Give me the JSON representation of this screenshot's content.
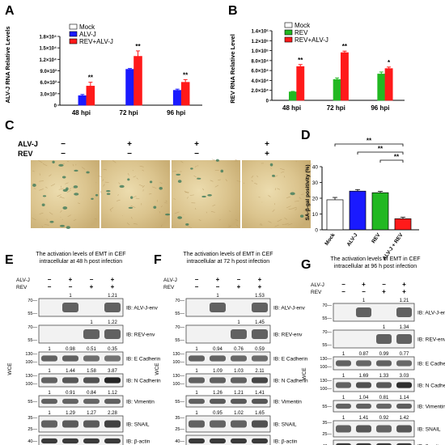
{
  "panels": {
    "A": {
      "letter": "A",
      "ylabel": "ALV-J RNA Relative Levels",
      "yticks": [
        "0",
        "3.0×10³",
        "6.0×10³",
        "9.0×10³",
        "1.2×10⁴",
        "1.5×10⁴",
        "1.8×10⁴"
      ],
      "categories": [
        "48 hpi",
        "72 hpi",
        "96 hpi"
      ],
      "legend": [
        "Mock",
        "ALV-J",
        "REV+ALV-J"
      ],
      "sig": [
        "**",
        "**",
        "**"
      ]
    },
    "B": {
      "letter": "B",
      "ylabel": "REV RNA Relative Level",
      "yticks": [
        "0",
        "2.0×10⁴",
        "4.0×10⁴",
        "6.0×10⁴",
        "8.0×10⁴",
        "1.0×10⁵",
        "1.2×10⁵",
        "1.4×10⁵"
      ],
      "categories": [
        "48 hpi",
        "72 hpi",
        "96 hpi"
      ],
      "legend": [
        "Mock",
        "REV",
        "REV+ALV-J"
      ],
      "sig": [
        "**",
        "**",
        "*"
      ]
    },
    "C": {
      "letter": "C",
      "row_labels": [
        "ALV-J",
        "REV"
      ],
      "signs": [
        [
          "−",
          "+",
          "+",
          "+"
        ],
        [
          "−",
          "−",
          "−",
          "+"
        ]
      ]
    },
    "D": {
      "letter": "D",
      "ylabel": "SA-β-gal positivity (%)",
      "yticks": [
        "0",
        "10",
        "20",
        "30",
        "40"
      ],
      "categories": [
        "Mock",
        "ALV-J",
        "REV",
        "ALV-J + REV"
      ],
      "sig": [
        "**",
        "**",
        "**"
      ]
    },
    "blots": [
      {
        "letter": "E",
        "title1": "The activation levels of EMT in CEF",
        "title2": "intracellular at 48 h post infection",
        "rows": [
          {
            "label": "IB: ALV-J-env",
            "mw": [
              "70—",
              "55—"
            ],
            "values": [
              "1",
              "1.21"
            ]
          },
          {
            "label": "IB: REV-env",
            "mw": [
              "70—",
              "55—"
            ],
            "values": [
              "1",
              "1.22"
            ]
          },
          {
            "label": "IB: E Cadherin",
            "mw": [
              "130—",
              "100—"
            ],
            "values": [
              "1",
              "0.98",
              "0.51",
              "0.35"
            ]
          },
          {
            "label": "IB: N Cadherin",
            "mw": [
              "130—",
              "100—"
            ],
            "values": [
              "1",
              "1.44",
              "1.58",
              "3.87"
            ]
          },
          {
            "label": "IB: Vimentin",
            "mw": [
              "55—"
            ],
            "values": [
              "1",
              "0.91",
              "0.84",
              "1.12"
            ]
          },
          {
            "label": "IB: SNAIL",
            "mw": [
              "35—",
              "25—"
            ],
            "values": [
              "1",
              "1.29",
              "1.27",
              "2.28"
            ]
          },
          {
            "label": "IB: β-actin",
            "mw": [
              "40—"
            ],
            "values": []
          }
        ]
      },
      {
        "letter": "F",
        "title1": "The activation levels of EMT in CEF",
        "title2": "intracellular at 72 h post infection",
        "rows": [
          {
            "label": "IB: ALV-J-env",
            "mw": [
              "70—",
              "55—"
            ],
            "values": [
              "1",
              "1.53"
            ]
          },
          {
            "label": "IB: REV-env",
            "mw": [
              "70—",
              "55—"
            ],
            "values": [
              "1",
              "1.45"
            ]
          },
          {
            "label": "IB: E Cadherin",
            "mw": [
              "130—",
              "100—"
            ],
            "values": [
              "1",
              "0.94",
              "0.76",
              "0.59"
            ]
          },
          {
            "label": "IB: N Cadherin",
            "mw": [
              "130—",
              "100—"
            ],
            "values": [
              "1",
              "1.09",
              "1.03",
              "2.11"
            ]
          },
          {
            "label": "IB: Vimentin",
            "mw": [
              "55—"
            ],
            "values": [
              "1",
              "1.26",
              "1.21",
              "1.41"
            ]
          },
          {
            "label": "IB: SNAIL",
            "mw": [
              "35—",
              "25—"
            ],
            "values": [
              "1",
              "0.95",
              "1.02",
              "1.65"
            ]
          },
          {
            "label": "IB: β-actin",
            "mw": [
              "40—"
            ],
            "values": []
          }
        ]
      },
      {
        "letter": "G",
        "title1": "The activation levels of EMT in CEF",
        "title2": "intracellular at 96 h post  infection",
        "rows": [
          {
            "label": "IB: ALV-J-env",
            "mw": [
              "70—",
              "55—"
            ],
            "values": [
              "1",
              "1.21"
            ]
          },
          {
            "label": "IB: REV-env",
            "mw": [
              "70—",
              "55—"
            ],
            "values": [
              "1",
              "1.34"
            ]
          },
          {
            "label": "IB: E Cadherin",
            "mw": [
              "130—",
              "100—"
            ],
            "values": [
              "1",
              "0.87",
              "0.99",
              "0.77"
            ]
          },
          {
            "label": "IB: N Cadherin",
            "mw": [
              "130—",
              "100—"
            ],
            "values": [
              "1",
              "1.69",
              "1.33",
              "3.03"
            ]
          },
          {
            "label": "IB: Vimentin",
            "mw": [
              "55—"
            ],
            "values": [
              "1",
              "1.04",
              "0.81",
              "1.14"
            ]
          },
          {
            "label": "IB: SNAIL",
            "mw": [
              "35—",
              "25—"
            ],
            "values": [
              "1",
              "1.41",
              "0.92",
              "1.42"
            ]
          },
          {
            "label": "IB: β-actin",
            "mw": [
              "40—"
            ],
            "values": []
          }
        ]
      }
    ],
    "blot_common": {
      "row_labels": [
        "ALV-J",
        "REV"
      ],
      "signs": [
        [
          "−",
          "+",
          "−",
          "+"
        ],
        [
          "−",
          "−",
          "+",
          "+"
        ]
      ],
      "side_label": "WCE"
    }
  },
  "colors": {
    "mock": "#ffffff",
    "alvj": "#1a1aff",
    "rev": "#22b822",
    "combo": "#ff1a1a",
    "d_rev": "#22b822"
  },
  "chart_data": [
    {
      "type": "bar",
      "panel": "A",
      "categories": [
        "48 hpi",
        "72 hpi",
        "96 hpi"
      ],
      "series": [
        {
          "name": "Mock",
          "values": [
            0,
            0,
            0
          ]
        },
        {
          "name": "ALV-J",
          "values": [
            2500,
            9400,
            3900
          ]
        },
        {
          "name": "REV+ALV-J",
          "values": [
            5000,
            12800,
            6000
          ]
        }
      ],
      "errors": [
        [
          0,
          0,
          0
        ],
        [
          300,
          200,
          300
        ],
        [
          1000,
          1400,
          700
        ]
      ],
      "ylabel": "ALV-J RNA Relative Levels",
      "ylim": [
        0,
        18000
      ]
    },
    {
      "type": "bar",
      "panel": "B",
      "categories": [
        "48 hpi",
        "72 hpi",
        "96 hpi"
      ],
      "series": [
        {
          "name": "Mock",
          "values": [
            0,
            0,
            0
          ]
        },
        {
          "name": "REV",
          "values": [
            17000,
            42000,
            53000
          ]
        },
        {
          "name": "REV+ALV-J",
          "values": [
            68000,
            96000,
            64000
          ]
        }
      ],
      "errors": [
        [
          0,
          0,
          0
        ],
        [
          1000,
          3000,
          4000
        ],
        [
          4000,
          3000,
          3000
        ]
      ],
      "ylabel": "REV RNA Relative Level",
      "ylim": [
        0,
        140000
      ]
    },
    {
      "type": "bar",
      "panel": "D",
      "categories": [
        "Mock",
        "ALV-J",
        "REV",
        "ALV-J + REV"
      ],
      "values": [
        19,
        24.5,
        23.5,
        7
      ],
      "errors": [
        1.5,
        1.0,
        0.8,
        1.0
      ],
      "ylabel": "SA-β-gal positivity (%)",
      "ylim": [
        0,
        40
      ]
    }
  ]
}
